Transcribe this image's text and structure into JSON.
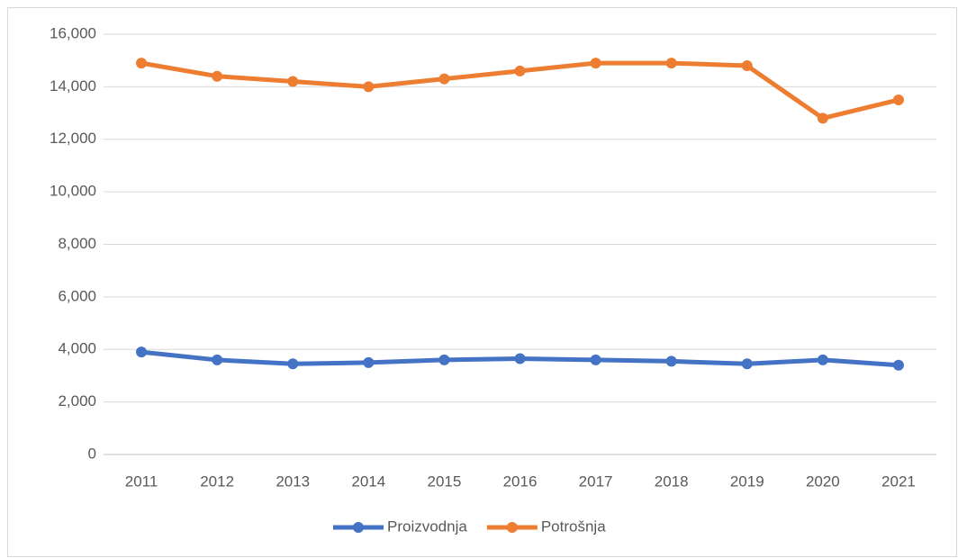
{
  "chart_data": {
    "type": "line",
    "categories": [
      "2011",
      "2012",
      "2013",
      "2014",
      "2015",
      "2016",
      "2017",
      "2018",
      "2019",
      "2020",
      "2021"
    ],
    "series": [
      {
        "name": "Proizvodnja",
        "color": "#4472c4",
        "values": [
          3900,
          3600,
          3450,
          3500,
          3600,
          3650,
          3600,
          3550,
          3450,
          3600,
          3400
        ]
      },
      {
        "name": "Potrošnja",
        "color": "#ed7d31",
        "values": [
          14900,
          14400,
          14200,
          14000,
          14300,
          14600,
          14900,
          14900,
          14800,
          12800,
          13500
        ]
      }
    ],
    "ylim": [
      0,
      16000
    ],
    "yticks": [
      0,
      {
        "value": 2000,
        "label": "2,000"
      },
      {
        "value": 4000,
        "label": "4,000"
      },
      {
        "value": 6000,
        "label": "6,000"
      },
      {
        "value": 8000,
        "label": "8,000"
      },
      {
        "value": 10000,
        "label": "10,000"
      },
      {
        "value": 12000,
        "label": "12,000"
      },
      {
        "value": 14000,
        "label": "14,000"
      },
      {
        "value": 16000,
        "label": "16,000"
      }
    ],
    "grid": true,
    "legend": "bottom"
  }
}
